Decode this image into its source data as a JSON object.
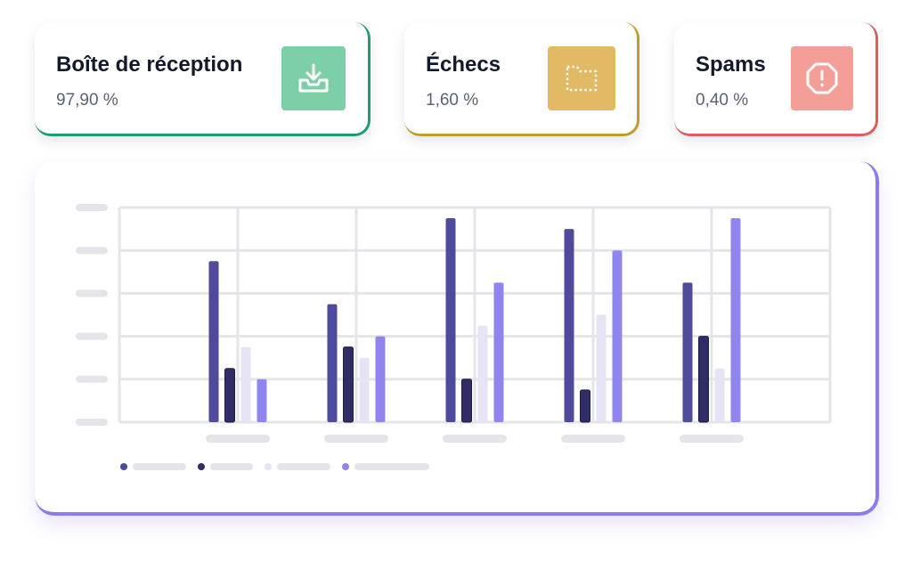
{
  "cards": [
    {
      "title": "Boîte de réception",
      "value": "97,90 %",
      "icon": "inbox-download-icon",
      "color": "#7ccfa6",
      "accent": "#1e9e6e"
    },
    {
      "title": "Échecs",
      "value": "1,60 %",
      "icon": "dashed-folder-icon",
      "color": "#e2b964",
      "accent": "#c29a2e"
    },
    {
      "title": "Spams",
      "value": "0,40 %",
      "icon": "alert-octagon-icon",
      "color": "#f49e98",
      "accent": "#e05c5c"
    }
  ],
  "chart_data": {
    "type": "bar",
    "title": "",
    "xlabel": "",
    "ylabel": "",
    "ylim": [
      0,
      5
    ],
    "grid": true,
    "legend": "bottom-left",
    "categories": [
      "",
      "",
      "",
      "",
      ""
    ],
    "series": [
      {
        "color": "#4e4a9c",
        "values": [
          3.75,
          2.75,
          4.75,
          4.5,
          3.25
        ]
      },
      {
        "color": "#2f2c66",
        "values": [
          1.25,
          1.75,
          1.0,
          0.75,
          2.0
        ]
      },
      {
        "color": "#e6e3f5",
        "values": [
          1.75,
          1.5,
          2.25,
          2.5,
          1.25
        ]
      },
      {
        "color": "#9085ee",
        "values": [
          1.0,
          2.0,
          3.25,
          4.0,
          4.75
        ]
      }
    ],
    "axis_placeholder_color": "#e3e5ea",
    "grid_color": "#e3e5ea"
  }
}
